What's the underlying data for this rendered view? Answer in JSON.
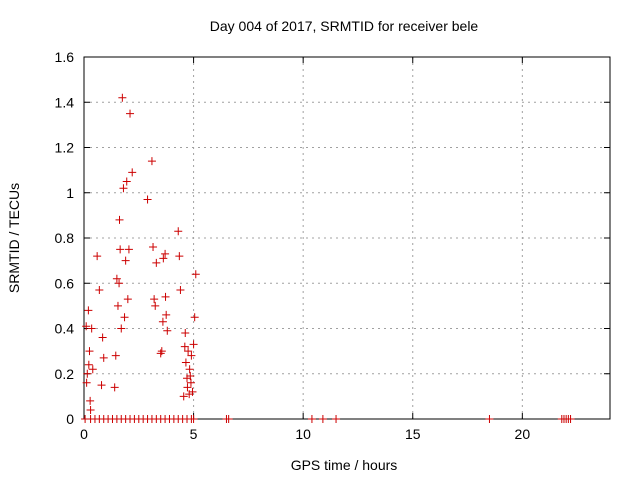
{
  "chart_data": {
    "type": "scatter",
    "title": "Day 004 of 2017, SRMTID for receiver bele",
    "xlabel": "GPS time / hours",
    "ylabel": "SRMTID / TECUs",
    "xlim": [
      0,
      24
    ],
    "ylim": [
      0,
      1.6
    ],
    "xticks": [
      0,
      5,
      10,
      15,
      20
    ],
    "xtick_labels": [
      "0",
      "5",
      "10",
      "15",
      "20"
    ],
    "yticks": [
      0,
      0.2,
      0.4,
      0.6,
      0.8,
      1.0,
      1.2,
      1.4,
      1.6
    ],
    "ytick_labels": [
      "0",
      "0.2",
      "0.4",
      "0.6",
      "0.8",
      "1",
      "1.2",
      "1.4",
      "1.6"
    ],
    "grid": true,
    "marker": "plus",
    "color": "#cc0000",
    "series": [
      {
        "name": "SRMTID",
        "x": [
          0.1,
          0.12,
          0.15,
          0.2,
          0.22,
          0.25,
          0.28,
          0.3,
          0.35,
          0.4,
          0.6,
          0.7,
          0.8,
          0.85,
          0.9,
          1.4,
          1.45,
          1.5,
          1.55,
          1.6,
          1.62,
          1.65,
          1.7,
          1.75,
          1.8,
          1.85,
          1.9,
          1.95,
          2.0,
          2.05,
          2.1,
          2.2,
          2.9,
          3.1,
          3.15,
          3.2,
          3.25,
          3.3,
          3.5,
          3.55,
          3.6,
          3.62,
          3.7,
          3.72,
          3.75,
          3.8,
          4.3,
          4.35,
          4.4,
          4.55,
          4.6,
          4.62,
          4.65,
          4.7,
          4.72,
          4.75,
          4.8,
          4.82,
          4.85,
          4.88,
          4.9,
          4.95,
          5.0,
          5.05,
          5.1,
          0.05,
          0.3,
          0.5,
          0.7,
          0.9,
          1.1,
          1.3,
          1.5,
          1.7,
          1.9,
          2.1,
          2.3,
          2.5,
          2.7,
          2.9,
          3.1,
          3.3,
          3.5,
          3.7,
          3.9,
          4.1,
          4.3,
          4.5,
          4.7,
          4.9,
          5.0,
          6.5,
          6.6,
          10.4,
          10.9,
          11.5,
          18.5,
          21.8,
          21.9,
          22.0,
          22.1,
          22.2
        ],
        "y": [
          0.41,
          0.16,
          0.2,
          0.48,
          0.24,
          0.3,
          0.08,
          0.04,
          0.4,
          0.22,
          0.72,
          0.57,
          0.15,
          0.36,
          0.27,
          0.14,
          0.28,
          0.62,
          0.5,
          0.6,
          0.88,
          0.75,
          0.4,
          1.42,
          1.02,
          0.45,
          0.7,
          1.05,
          0.53,
          0.75,
          1.35,
          1.09,
          0.97,
          1.14,
          0.76,
          0.53,
          0.5,
          0.69,
          0.29,
          0.3,
          0.43,
          0.71,
          0.73,
          0.54,
          0.46,
          0.39,
          0.83,
          0.72,
          0.57,
          0.1,
          0.32,
          0.38,
          0.25,
          0.18,
          0.14,
          0.3,
          0.11,
          0.22,
          0.19,
          0.16,
          0.28,
          0.12,
          0.33,
          0.45,
          0.64,
          0,
          0,
          0,
          0,
          0,
          0,
          0,
          0,
          0,
          0,
          0,
          0,
          0,
          0,
          0,
          0,
          0,
          0,
          0,
          0,
          0,
          0,
          0,
          0,
          0,
          0,
          0,
          0,
          0,
          0,
          0,
          0,
          0,
          0,
          0,
          0,
          0
        ]
      }
    ]
  }
}
